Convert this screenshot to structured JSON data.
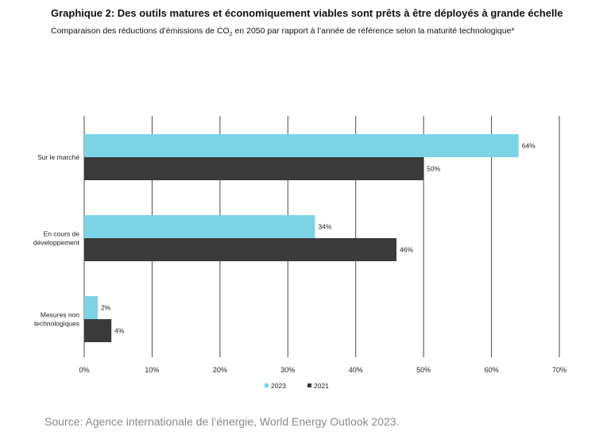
{
  "header": {
    "title": "Graphique 2: Des outils matures et économiquement viables sont prêts à être déployés à grande échelle",
    "subtitle_before": "Comparaison des réductions d’émissions de CO",
    "subtitle_sub": "2",
    "subtitle_after": " en 2050 par rapport à l’année de référence selon la maturité technologique*"
  },
  "chart_data": {
    "type": "bar",
    "orientation": "horizontal",
    "categories": [
      [
        "Sur le marché"
      ],
      [
        "En cours de",
        "développement"
      ],
      [
        "Mesures non",
        "technologiques"
      ]
    ],
    "series": [
      {
        "name": "2023",
        "color": "#7dd3e6",
        "values": [
          64,
          34,
          2
        ],
        "labels": [
          "64%",
          "34%",
          "2%"
        ]
      },
      {
        "name": "2021",
        "color": "#3a3a3a",
        "values": [
          50,
          46,
          4
        ],
        "labels": [
          "50%",
          "46%",
          "4%"
        ]
      }
    ],
    "xlim": [
      0,
      70
    ],
    "xticks": [
      0,
      10,
      20,
      30,
      40,
      50,
      60,
      70
    ],
    "xtick_labels": [
      "0%",
      "10%",
      "20%",
      "30%",
      "40%",
      "50%",
      "60%",
      "70%"
    ],
    "grid": "vertical",
    "legend_position": "bottom-center"
  },
  "footer": {
    "source": "Source: Agence internationale de l’énergie, World Energy Outlook 2023."
  }
}
